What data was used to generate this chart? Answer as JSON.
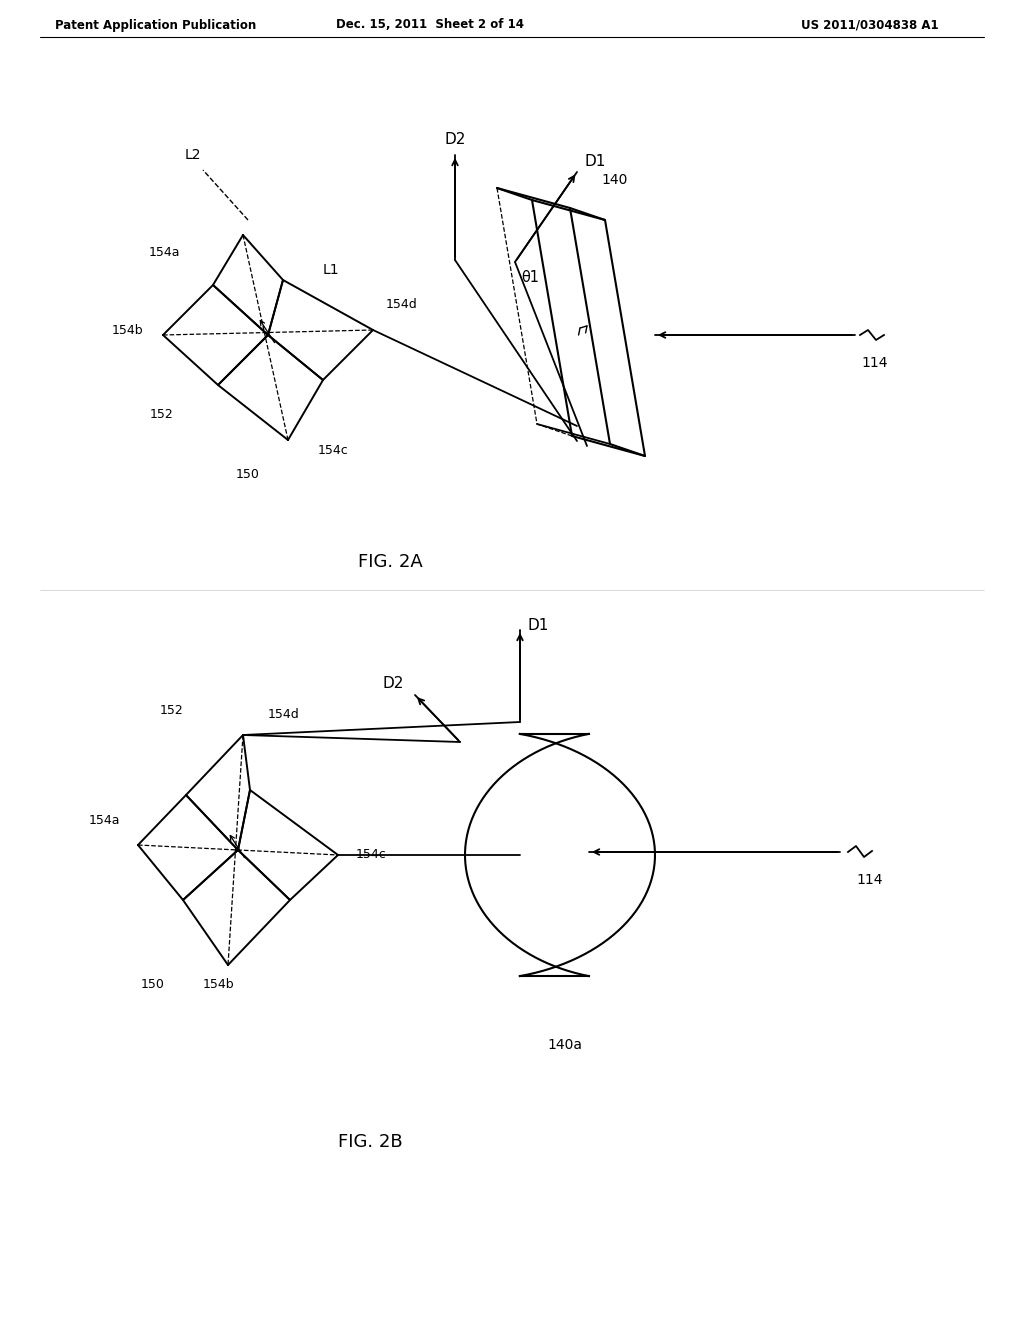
{
  "bg_color": "#ffffff",
  "header_left": "Patent Application Publication",
  "header_mid": "Dec. 15, 2011  Sheet 2 of 14",
  "header_right": "US 2011/0304838 A1",
  "fig2a_title": "FIG. 2A",
  "fig2b_title": "FIG. 2B"
}
